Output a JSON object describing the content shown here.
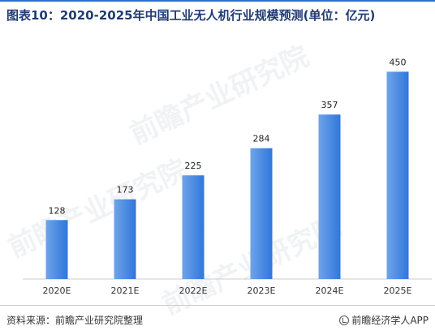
{
  "chart_data": {
    "type": "bar",
    "title": "图表10：2020-2025年中国工业无人机行业规模预测(单位：亿元)",
    "categories": [
      "2020E",
      "2021E",
      "2022E",
      "2023E",
      "2024E",
      "2025E"
    ],
    "values": [
      128,
      173,
      225,
      284,
      357,
      450
    ],
    "ylim": [
      0,
      500
    ],
    "xlabel": "",
    "ylabel": "",
    "grid": false,
    "legend": "none",
    "colors": {
      "bar_start": "#6fa4e8",
      "bar_end": "#2f76dc",
      "axis": "#cccccc",
      "title": "#1f3b73",
      "accent_rule": "#2e6fd1"
    }
  },
  "footer": {
    "source": "资料来源：前瞻产业研究院整理",
    "brand": "前瞻经济学人APP",
    "brand_icon": "qianzhan-logo-icon"
  },
  "watermark": {
    "text": "前瞻产业研究院"
  }
}
